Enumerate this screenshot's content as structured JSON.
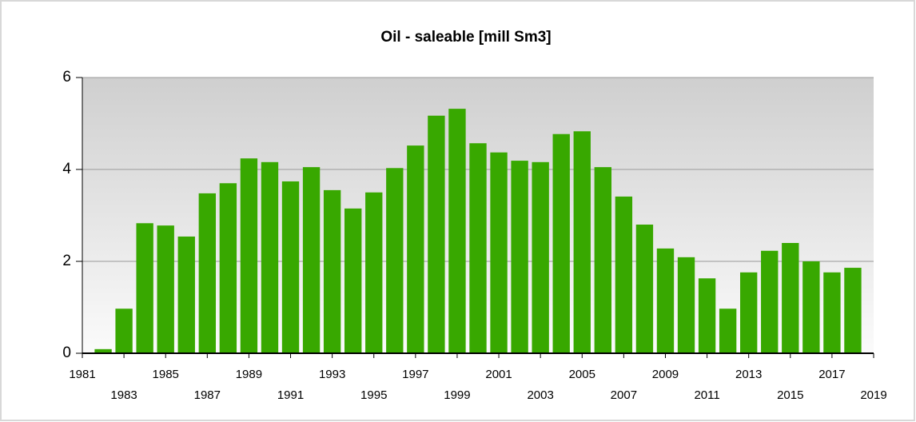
{
  "chart_data": {
    "type": "bar",
    "title": "Oil - saleable [mill Sm3]",
    "x": [
      1982,
      1983,
      1984,
      1985,
      1986,
      1987,
      1988,
      1989,
      1990,
      1991,
      1992,
      1993,
      1994,
      1995,
      1996,
      1997,
      1998,
      1999,
      2000,
      2001,
      2002,
      2003,
      2004,
      2005,
      2006,
      2007,
      2008,
      2009,
      2010,
      2011,
      2012,
      2013,
      2014,
      2015,
      2016,
      2017,
      2018
    ],
    "values": [
      0.09,
      0.97,
      2.83,
      2.78,
      2.54,
      3.48,
      3.7,
      4.24,
      4.16,
      3.74,
      4.05,
      3.55,
      3.15,
      3.5,
      4.03,
      4.52,
      5.17,
      5.32,
      4.57,
      4.37,
      4.19,
      4.16,
      4.77,
      4.83,
      4.05,
      3.41,
      2.8,
      2.28,
      2.09,
      1.63,
      0.97,
      1.76,
      2.23,
      2.4,
      2.0,
      1.76,
      1.86
    ],
    "color": "#38a800",
    "xlim": [
      1981,
      2019
    ],
    "xticks": [
      1981,
      1983,
      1985,
      1987,
      1989,
      1991,
      1993,
      1995,
      1997,
      1999,
      2001,
      2003,
      2005,
      2007,
      2009,
      2011,
      2013,
      2015,
      2017,
      2019
    ],
    "ylim": [
      0,
      6
    ],
    "yticks": [
      0,
      2,
      4,
      6
    ],
    "grid": true
  }
}
